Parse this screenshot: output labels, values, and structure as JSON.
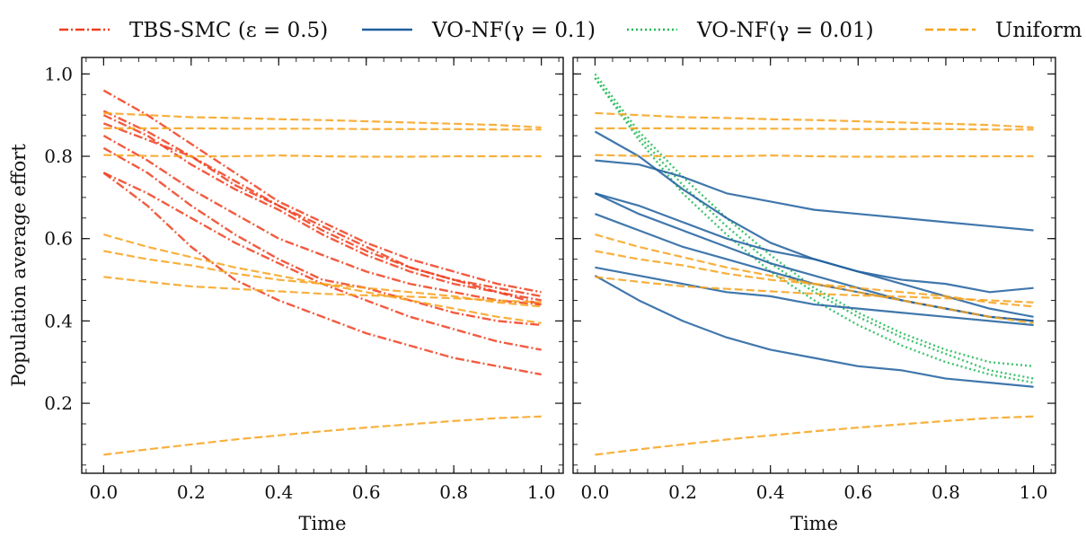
{
  "legend": {
    "placement": "top-center, outside plots",
    "entries": [
      {
        "key": "tbs",
        "label": "TBS-SMC (ε = 0.5)",
        "color": "#f03e1e",
        "dash": "dashdot"
      },
      {
        "key": "vo01",
        "label": "VO-NF(γ = 0.1)",
        "color": "#1f5f9e",
        "dash": "solid"
      },
      {
        "key": "vo001",
        "label": "VO-NF(γ = 0.01)",
        "color": "#1db954",
        "dash": "dotted"
      },
      {
        "key": "uniform",
        "label": "Uniform",
        "color": "#f7a21b",
        "dash": "dashed"
      }
    ]
  },
  "chart_data": [
    {
      "type": "line",
      "panel": "left",
      "xlabel": "Time",
      "ylabel": "Population average effort",
      "xlim": [
        -0.05,
        1.05
      ],
      "ylim": [
        0.03,
        1.04
      ],
      "xticks": [
        0.0,
        0.2,
        0.4,
        0.6,
        0.8,
        1.0
      ],
      "yticks": [
        0.2,
        0.4,
        0.6,
        0.8,
        1.0
      ],
      "x": [
        0.0,
        0.1,
        0.2,
        0.3,
        0.4,
        0.5,
        0.6,
        0.7,
        0.8,
        0.9,
        1.0
      ],
      "series": [
        {
          "group": "tbs",
          "values": [
            0.96,
            0.9,
            0.83,
            0.76,
            0.69,
            0.64,
            0.59,
            0.55,
            0.52,
            0.49,
            0.47
          ]
        },
        {
          "group": "tbs",
          "values": [
            0.91,
            0.86,
            0.8,
            0.74,
            0.68,
            0.62,
            0.57,
            0.53,
            0.5,
            0.48,
            0.46
          ]
        },
        {
          "group": "tbs",
          "values": [
            0.9,
            0.85,
            0.78,
            0.72,
            0.67,
            0.61,
            0.56,
            0.52,
            0.49,
            0.47,
            0.44
          ]
        },
        {
          "group": "tbs",
          "values": [
            0.88,
            0.84,
            0.8,
            0.73,
            0.68,
            0.63,
            0.58,
            0.53,
            0.5,
            0.47,
            0.45
          ]
        },
        {
          "group": "tbs",
          "values": [
            0.85,
            0.79,
            0.72,
            0.66,
            0.6,
            0.56,
            0.52,
            0.49,
            0.47,
            0.45,
            0.44
          ]
        },
        {
          "group": "tbs",
          "values": [
            0.82,
            0.76,
            0.68,
            0.61,
            0.55,
            0.5,
            0.48,
            0.45,
            0.42,
            0.4,
            0.39
          ]
        },
        {
          "group": "tbs",
          "values": [
            0.76,
            0.71,
            0.65,
            0.59,
            0.54,
            0.49,
            0.45,
            0.41,
            0.38,
            0.35,
            0.33
          ]
        },
        {
          "group": "tbs",
          "values": [
            0.76,
            0.68,
            0.58,
            0.5,
            0.45,
            0.41,
            0.37,
            0.34,
            0.31,
            0.29,
            0.27
          ]
        },
        {
          "group": "uniform",
          "values": [
            0.905,
            0.9,
            0.895,
            0.893,
            0.89,
            0.888,
            0.885,
            0.882,
            0.879,
            0.876,
            0.87
          ]
        },
        {
          "group": "uniform",
          "values": [
            0.868,
            0.868,
            0.868,
            0.867,
            0.867,
            0.867,
            0.866,
            0.866,
            0.866,
            0.865,
            0.865
          ]
        },
        {
          "group": "uniform",
          "values": [
            0.803,
            0.801,
            0.8,
            0.8,
            0.802,
            0.8,
            0.799,
            0.799,
            0.8,
            0.8,
            0.8
          ]
        },
        {
          "group": "uniform",
          "values": [
            0.61,
            0.58,
            0.555,
            0.53,
            0.51,
            0.49,
            0.47,
            0.45,
            0.43,
            0.41,
            0.395
          ]
        },
        {
          "group": "uniform",
          "values": [
            0.57,
            0.55,
            0.535,
            0.515,
            0.5,
            0.49,
            0.48,
            0.47,
            0.46,
            0.445,
            0.435
          ]
        },
        {
          "group": "uniform",
          "values": [
            0.507,
            0.495,
            0.484,
            0.478,
            0.472,
            0.466,
            0.462,
            0.459,
            0.455,
            0.45,
            0.445
          ]
        },
        {
          "group": "uniform",
          "values": [
            0.075,
            0.088,
            0.1,
            0.112,
            0.122,
            0.132,
            0.141,
            0.149,
            0.157,
            0.164,
            0.168
          ]
        }
      ]
    },
    {
      "type": "line",
      "panel": "right",
      "xlabel": "Time",
      "ylabel": "",
      "xlim": [
        -0.05,
        1.05
      ],
      "ylim": [
        0.03,
        1.04
      ],
      "xticks": [
        0.0,
        0.2,
        0.4,
        0.6,
        0.8,
        1.0
      ],
      "yticks": [
        0.2,
        0.4,
        0.6,
        0.8,
        1.0
      ],
      "x": [
        0.0,
        0.1,
        0.2,
        0.3,
        0.4,
        0.5,
        0.6,
        0.7,
        0.8,
        0.9,
        1.0
      ],
      "series": [
        {
          "group": "vo001",
          "values": [
            1.0,
            0.86,
            0.75,
            0.65,
            0.56,
            0.48,
            0.42,
            0.37,
            0.33,
            0.3,
            0.29
          ]
        },
        {
          "group": "vo001",
          "values": [
            0.99,
            0.85,
            0.73,
            0.63,
            0.54,
            0.47,
            0.41,
            0.36,
            0.32,
            0.28,
            0.26
          ]
        },
        {
          "group": "vo001",
          "values": [
            0.99,
            0.84,
            0.71,
            0.61,
            0.52,
            0.45,
            0.39,
            0.34,
            0.3,
            0.27,
            0.25
          ]
        },
        {
          "group": "vo01",
          "values": [
            0.86,
            0.8,
            0.72,
            0.65,
            0.59,
            0.55,
            0.52,
            0.49,
            0.46,
            0.43,
            0.41
          ]
        },
        {
          "group": "vo01",
          "values": [
            0.79,
            0.78,
            0.75,
            0.71,
            0.69,
            0.67,
            0.66,
            0.65,
            0.64,
            0.63,
            0.62
          ]
        },
        {
          "group": "vo01",
          "values": [
            0.71,
            0.68,
            0.64,
            0.6,
            0.57,
            0.55,
            0.52,
            0.5,
            0.49,
            0.47,
            0.48
          ]
        },
        {
          "group": "vo01",
          "values": [
            0.71,
            0.66,
            0.62,
            0.58,
            0.54,
            0.51,
            0.48,
            0.45,
            0.43,
            0.41,
            0.4
          ]
        },
        {
          "group": "vo01",
          "values": [
            0.66,
            0.62,
            0.58,
            0.55,
            0.52,
            0.49,
            0.47,
            0.45,
            0.43,
            0.41,
            0.4
          ]
        },
        {
          "group": "vo01",
          "values": [
            0.53,
            0.51,
            0.49,
            0.47,
            0.46,
            0.44,
            0.43,
            0.42,
            0.41,
            0.4,
            0.39
          ]
        },
        {
          "group": "vo01",
          "values": [
            0.51,
            0.45,
            0.4,
            0.36,
            0.33,
            0.31,
            0.29,
            0.28,
            0.26,
            0.25,
            0.24
          ]
        },
        {
          "group": "uniform",
          "values": [
            0.905,
            0.9,
            0.895,
            0.893,
            0.89,
            0.888,
            0.885,
            0.882,
            0.879,
            0.876,
            0.87
          ]
        },
        {
          "group": "uniform",
          "values": [
            0.868,
            0.868,
            0.868,
            0.867,
            0.867,
            0.867,
            0.866,
            0.866,
            0.866,
            0.865,
            0.865
          ]
        },
        {
          "group": "uniform",
          "values": [
            0.803,
            0.801,
            0.8,
            0.8,
            0.802,
            0.8,
            0.799,
            0.799,
            0.8,
            0.8,
            0.8
          ]
        },
        {
          "group": "uniform",
          "values": [
            0.61,
            0.58,
            0.555,
            0.53,
            0.51,
            0.49,
            0.47,
            0.45,
            0.43,
            0.41,
            0.395
          ]
        },
        {
          "group": "uniform",
          "values": [
            0.57,
            0.55,
            0.535,
            0.515,
            0.5,
            0.49,
            0.48,
            0.47,
            0.46,
            0.445,
            0.435
          ]
        },
        {
          "group": "uniform",
          "values": [
            0.507,
            0.495,
            0.484,
            0.478,
            0.472,
            0.466,
            0.462,
            0.459,
            0.455,
            0.45,
            0.445
          ]
        },
        {
          "group": "uniform",
          "values": [
            0.075,
            0.088,
            0.1,
            0.112,
            0.122,
            0.132,
            0.141,
            0.149,
            0.157,
            0.164,
            0.168
          ]
        }
      ]
    }
  ]
}
